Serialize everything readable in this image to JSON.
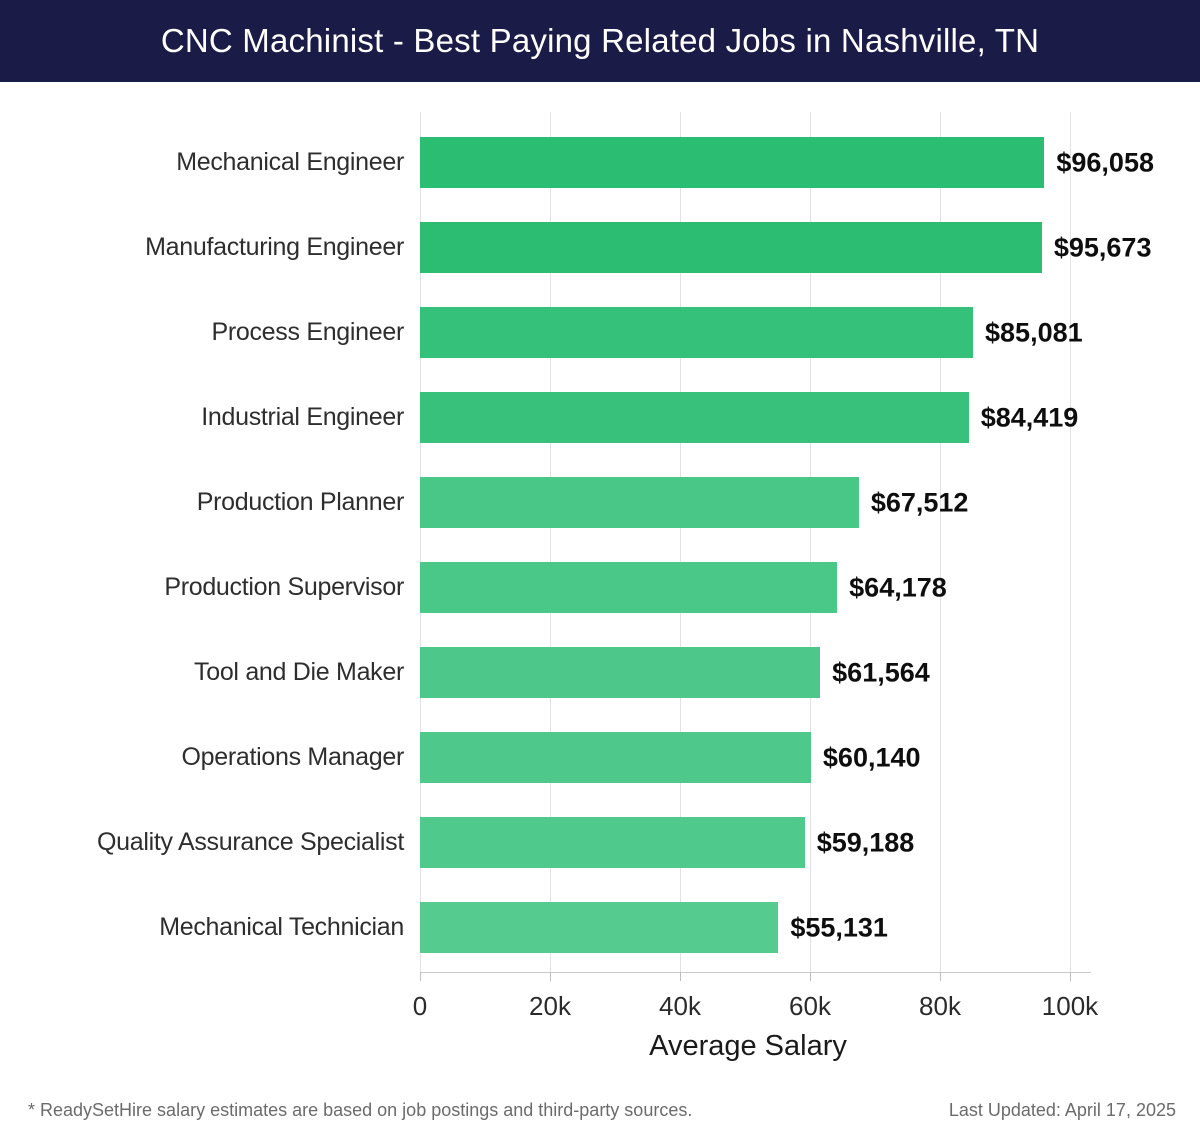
{
  "header": {
    "title": "CNC Machinist - Best Paying Related Jobs in Nashville, TN",
    "background_color": "#1b1b47",
    "text_color": "#ffffff"
  },
  "chart_data": {
    "type": "bar",
    "orientation": "horizontal",
    "title": "CNC Machinist - Best Paying Related Jobs in Nashville, TN",
    "xlabel": "Average Salary",
    "categories": [
      "Mechanical Engineer",
      "Manufacturing Engineer",
      "Process Engineer",
      "Industrial Engineer",
      "Production Planner",
      "Production Supervisor",
      "Tool and Die Maker",
      "Operations Manager",
      "Quality Assurance Specialist",
      "Mechanical Technician"
    ],
    "values": [
      96058,
      95673,
      85081,
      84419,
      67512,
      64178,
      61564,
      60140,
      59188,
      55131
    ],
    "value_labels": [
      "$96,058",
      "$95,673",
      "$85,081",
      "$84,419",
      "$67,512",
      "$64,178",
      "$61,564",
      "$60,140",
      "$59,188",
      "$55,131"
    ],
    "bar_colors": [
      "#2bbd72",
      "#2cbd73",
      "#36c17a",
      "#37c17b",
      "#48c787",
      "#4ac888",
      "#4dc88a",
      "#4fc98b",
      "#50c98c",
      "#55cb90"
    ],
    "x_ticks": [
      "0",
      "20k",
      "40k",
      "60k",
      "80k",
      "100k"
    ],
    "x_tick_values": [
      0,
      20000,
      40000,
      60000,
      80000,
      100000
    ],
    "xlim": [
      0,
      103000
    ],
    "grid": "vertical-only",
    "legend": "none",
    "gridline_color": "#e2e2e2",
    "axis_line_color": "#c9c9c9",
    "value_label_color": "#0e0e0e",
    "category_label_color": "#2e2e2e"
  },
  "footer": {
    "disclaimer": "* ReadySetHire salary estimates are based on job postings and third-party sources.",
    "last_updated": "Last Updated: April 17, 2025"
  }
}
